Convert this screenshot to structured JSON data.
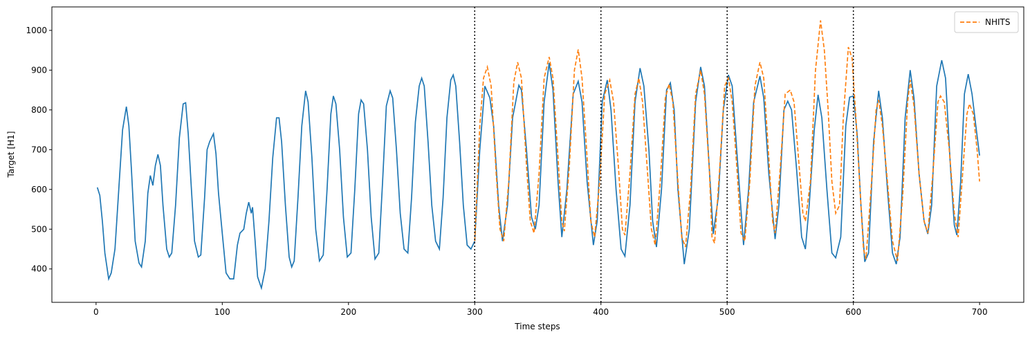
{
  "chart_data": {
    "type": "line",
    "xlabel": "Time steps",
    "ylabel": "Target [H1]",
    "xlim": [
      -35,
      735
    ],
    "ylim": [
      316,
      1059
    ],
    "xticks": [
      0,
      100,
      200,
      300,
      400,
      500,
      600,
      700
    ],
    "yticks": [
      400,
      500,
      600,
      700,
      800,
      900,
      1000
    ],
    "vlines": [
      300,
      400,
      500,
      600
    ],
    "legend": "upper right",
    "series": [
      {
        "color": "#1f77b4",
        "dash": "solid",
        "x": [
          1,
          3,
          5,
          7,
          10,
          12,
          15,
          18,
          21,
          24,
          26,
          28,
          31,
          34,
          36,
          39,
          41,
          43,
          45,
          47,
          49,
          51,
          53,
          56,
          58,
          60,
          63,
          66,
          69,
          71,
          73,
          75,
          78,
          81,
          83,
          86,
          88,
          90,
          93,
          95,
          97,
          100,
          103,
          106,
          109,
          112,
          114,
          117,
          119,
          121,
          123,
          124,
          126,
          128,
          131,
          134,
          137,
          140,
          143,
          145,
          147,
          150,
          153,
          155,
          157,
          160,
          163,
          166,
          168,
          171,
          174,
          177,
          180,
          183,
          186,
          188,
          190,
          193,
          196,
          199,
          202,
          205,
          208,
          210,
          212,
          215,
          218,
          221,
          224,
          227,
          230,
          233,
          235,
          238,
          241,
          244,
          247,
          250,
          253,
          256,
          258,
          260,
          263,
          266,
          269,
          272,
          275,
          278,
          281,
          283,
          285,
          288,
          291,
          294,
          297,
          300,
          304,
          308,
          312,
          315,
          319,
          322,
          326,
          330,
          335,
          337,
          341,
          345,
          348,
          351,
          355,
          359,
          362,
          366,
          369,
          373,
          378,
          382,
          385,
          389,
          394,
          397,
          401,
          405,
          408,
          412,
          416,
          419,
          423,
          427,
          431,
          434,
          438,
          441,
          444,
          448,
          452,
          455,
          458,
          461,
          466,
          470,
          475,
          479,
          482,
          485,
          489,
          493,
          497,
          501,
          504,
          508,
          513,
          517,
          521,
          526,
          529,
          533,
          538,
          541,
          545,
          548,
          551,
          555,
          559,
          562,
          565,
          569,
          572,
          575,
          579,
          583,
          586,
          590,
          594,
          597,
          600,
          603,
          606,
          609,
          612,
          616,
          620,
          623,
          627,
          631,
          634,
          637,
          641,
          645,
          648,
          652,
          656,
          659,
          662,
          666,
          670,
          673,
          677,
          680,
          682,
          685,
          688,
          691,
          694,
          697,
          700
        ],
        "values": [
          605,
          585,
          520,
          440,
          375,
          390,
          450,
          600,
          750,
          808,
          760,
          650,
          470,
          415,
          405,
          470,
          590,
          635,
          610,
          660,
          688,
          660,
          560,
          450,
          430,
          440,
          560,
          730,
          815,
          818,
          740,
          630,
          470,
          430,
          435,
          580,
          700,
          720,
          740,
          690,
          590,
          490,
          390,
          375,
          375,
          460,
          490,
          500,
          540,
          568,
          540,
          555,
          470,
          380,
          352,
          400,
          520,
          680,
          780,
          780,
          720,
          560,
          430,
          405,
          420,
          580,
          760,
          848,
          820,
          680,
          500,
          420,
          435,
          600,
          790,
          835,
          815,
          700,
          530,
          430,
          440,
          600,
          790,
          825,
          815,
          700,
          530,
          425,
          440,
          620,
          810,
          848,
          830,
          700,
          540,
          450,
          440,
          580,
          770,
          860,
          880,
          860,
          720,
          560,
          470,
          450,
          580,
          780,
          875,
          888,
          860,
          720,
          560,
          460,
          450,
          470,
          700,
          860,
          830,
          760,
          560,
          470,
          560,
          780,
          862,
          850,
          700,
          530,
          500,
          560,
          820,
          918,
          850,
          620,
          480,
          600,
          840,
          872,
          820,
          620,
          460,
          520,
          820,
          875,
          800,
          600,
          450,
          432,
          560,
          820,
          905,
          860,
          700,
          520,
          455,
          600,
          850,
          868,
          800,
          600,
          412,
          500,
          820,
          908,
          860,
          700,
          488,
          580,
          800,
          888,
          860,
          680,
          460,
          600,
          820,
          885,
          830,
          640,
          475,
          560,
          800,
          822,
          800,
          650,
          480,
          450,
          560,
          750,
          838,
          780,
          600,
          440,
          428,
          480,
          760,
          832,
          835,
          740,
          560,
          418,
          440,
          720,
          848,
          780,
          600,
          440,
          412,
          480,
          780,
          900,
          830,
          640,
          520,
          488,
          560,
          860,
          925,
          880,
          650,
          510,
          485,
          620,
          840,
          890,
          840,
          760,
          685
        ]
      },
      {
        "name": "NHITS",
        "color": "#ff7f0e",
        "dash": "dashed",
        "x": [
          300,
          304,
          307,
          310,
          313,
          317,
          320,
          323,
          327,
          331,
          334,
          337,
          341,
          344,
          347,
          351,
          355,
          359,
          362,
          366,
          369,
          371,
          375,
          379,
          382,
          385,
          389,
          392,
          395,
          399,
          403,
          407,
          410,
          414,
          417,
          419,
          423,
          427,
          430,
          433,
          437,
          440,
          443,
          447,
          451,
          454,
          457,
          461,
          464,
          467,
          471,
          475,
          479,
          482,
          486,
          488,
          490,
          494,
          498,
          501,
          504,
          508,
          511,
          514,
          518,
          522,
          526,
          529,
          533,
          536,
          538,
          542,
          546,
          550,
          553,
          557,
          560,
          562,
          566,
          570,
          574,
          577,
          580,
          583,
          586,
          589,
          592,
          596,
          599,
          602,
          606,
          608,
          610,
          614,
          618,
          620,
          623,
          627,
          631,
          635,
          639,
          643,
          645,
          648,
          652,
          656,
          659,
          663,
          667,
          669,
          672,
          676,
          680,
          683,
          687,
          690,
          692,
          695,
          698,
          700
        ],
        "values": [
          470,
          760,
          880,
          908,
          860,
          640,
          500,
          470,
          620,
          870,
          920,
          880,
          660,
          520,
          490,
          640,
          880,
          933,
          880,
          680,
          520,
          495,
          660,
          900,
          952,
          880,
          680,
          520,
          480,
          620,
          840,
          875,
          820,
          650,
          500,
          485,
          640,
          840,
          880,
          820,
          640,
          500,
          460,
          620,
          830,
          865,
          820,
          620,
          480,
          455,
          600,
          840,
          900,
          840,
          640,
          480,
          465,
          650,
          860,
          880,
          820,
          640,
          490,
          470,
          620,
          860,
          920,
          880,
          680,
          520,
          490,
          650,
          840,
          850,
          820,
          660,
          540,
          520,
          620,
          900,
          1025,
          950,
          800,
          620,
          540,
          560,
          780,
          958,
          930,
          780,
          560,
          450,
          425,
          600,
          800,
          825,
          760,
          620,
          470,
          420,
          580,
          820,
          875,
          810,
          640,
          520,
          490,
          640,
          820,
          835,
          820,
          700,
          540,
          480,
          660,
          790,
          815,
          790,
          700,
          620
        ]
      }
    ]
  }
}
